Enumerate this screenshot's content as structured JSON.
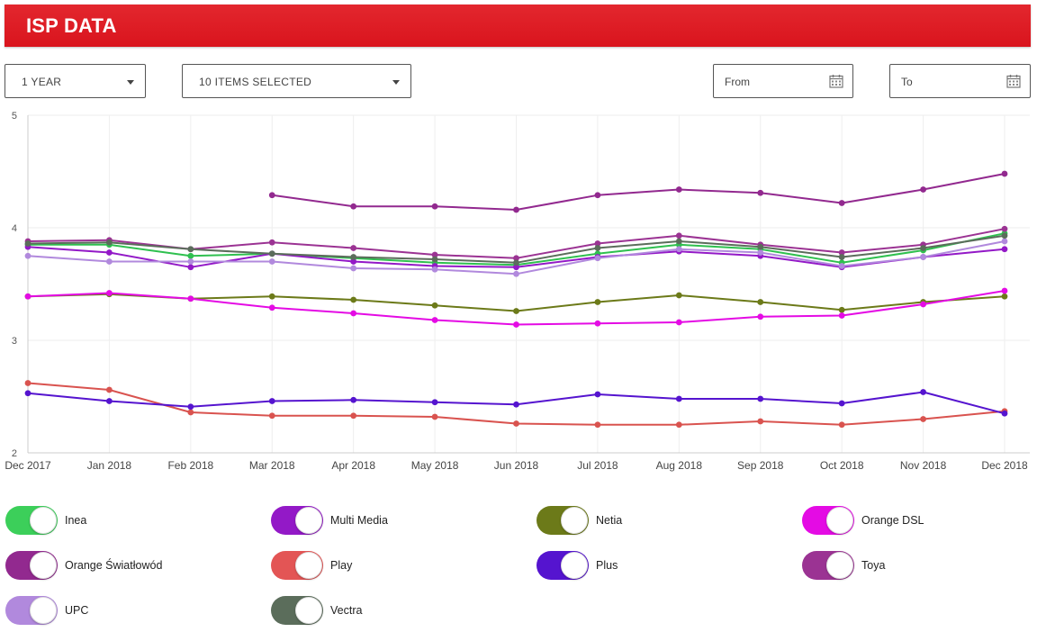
{
  "header": {
    "title": "ISP DATA"
  },
  "filters": {
    "period": "1 YEAR",
    "items": "10 ITEMS SELECTED",
    "from_placeholder": "From",
    "to_placeholder": "To"
  },
  "chart_data": {
    "type": "line",
    "categories": [
      "Dec 2017",
      "Jan 2018",
      "Feb 2018",
      "Mar 2018",
      "Apr 2018",
      "May 2018",
      "Jun 2018",
      "Jul 2018",
      "Aug 2018",
      "Sep 2018",
      "Oct 2018",
      "Nov 2018",
      "Dec 2018"
    ],
    "ylim": [
      2,
      5
    ],
    "yticks": [
      "2",
      "3",
      "4",
      "5"
    ],
    "grid": true,
    "series": [
      {
        "name": "Inea",
        "color": "#2fc04f",
        "values": [
          3.85,
          3.85,
          3.75,
          3.77,
          3.73,
          3.69,
          3.67,
          3.77,
          3.85,
          3.81,
          3.69,
          3.8,
          3.95
        ]
      },
      {
        "name": "Multi Media",
        "color": "#9319c7",
        "values": [
          3.83,
          3.78,
          3.65,
          3.77,
          3.7,
          3.66,
          3.65,
          3.74,
          3.79,
          3.75,
          3.65,
          3.74,
          3.81
        ]
      },
      {
        "name": "Netia",
        "color": "#6c7a19",
        "values": [
          3.39,
          3.41,
          3.37,
          3.39,
          3.36,
          3.31,
          3.26,
          3.34,
          3.4,
          3.34,
          3.27,
          3.34,
          3.39
        ]
      },
      {
        "name": "Orange DSL",
        "color": "#e40be4",
        "values": [
          3.39,
          3.42,
          3.37,
          3.29,
          3.24,
          3.18,
          3.14,
          3.15,
          3.16,
          3.21,
          3.22,
          3.32,
          3.44
        ]
      },
      {
        "name": "Orange Światłowód",
        "color": "#92298f",
        "values": [
          null,
          null,
          null,
          4.29,
          4.19,
          4.19,
          4.16,
          4.29,
          4.34,
          4.31,
          4.22,
          4.34,
          4.48
        ]
      },
      {
        "name": "Play",
        "color": "#d9534f",
        "values": [
          2.62,
          2.56,
          2.36,
          2.33,
          2.33,
          2.32,
          2.26,
          2.25,
          2.25,
          2.28,
          2.25,
          2.3,
          2.37
        ]
      },
      {
        "name": "Plus",
        "color": "#5514cf",
        "values": [
          2.53,
          2.46,
          2.41,
          2.46,
          2.47,
          2.45,
          2.43,
          2.52,
          2.48,
          2.48,
          2.44,
          2.54,
          2.35
        ]
      },
      {
        "name": "Toya",
        "color": "#9b3393",
        "values": [
          3.88,
          3.89,
          3.81,
          3.87,
          3.82,
          3.76,
          3.73,
          3.86,
          3.93,
          3.85,
          3.78,
          3.85,
          3.99
        ]
      },
      {
        "name": "UPC",
        "color": "#b189dd",
        "values": [
          3.75,
          3.7,
          3.7,
          3.7,
          3.64,
          3.63,
          3.59,
          3.73,
          3.81,
          3.78,
          3.66,
          3.74,
          3.88
        ]
      },
      {
        "name": "Vectra",
        "color": "#5b6d5b",
        "values": [
          3.86,
          3.87,
          3.81,
          3.77,
          3.74,
          3.72,
          3.69,
          3.82,
          3.88,
          3.83,
          3.74,
          3.82,
          3.93
        ]
      }
    ]
  },
  "legend": [
    {
      "label": "Inea",
      "color": "#3ccf5a"
    },
    {
      "label": "Multi Media",
      "color": "#9319c7"
    },
    {
      "label": "Netia",
      "color": "#6c7a19"
    },
    {
      "label": "Orange DSL",
      "color": "#e40be4"
    },
    {
      "label": "Orange Światłowód",
      "color": "#92298f"
    },
    {
      "label": "Play",
      "color": "#e35555"
    },
    {
      "label": "Plus",
      "color": "#5514cf"
    },
    {
      "label": "Toya",
      "color": "#9b3393"
    },
    {
      "label": "UPC",
      "color": "#b189dd"
    },
    {
      "label": "Vectra",
      "color": "#5b6d5b"
    }
  ]
}
